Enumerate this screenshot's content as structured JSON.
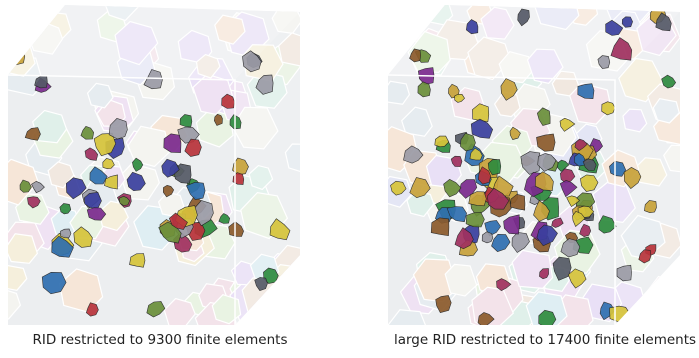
{
  "figure": {
    "panels": [
      {
        "caption": "RID restricted to 9300 finite elements"
      },
      {
        "caption": "large RID restricted to 17400 finite elements"
      }
    ]
  }
}
